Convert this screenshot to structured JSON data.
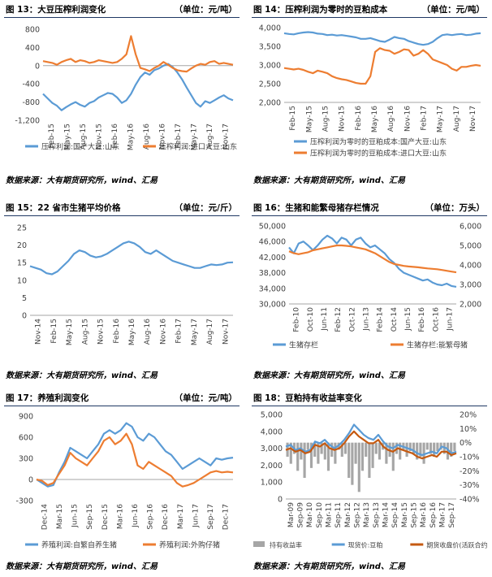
{
  "panels": [
    {
      "title": "图 13：大豆压榨利润变化",
      "unit": "（单位：元/吨）",
      "source": "数据来源：大有期货研究所，wind、汇易",
      "chart_data": {
        "type": "line",
        "x_ticks": [
          "Feb-15",
          "May-15",
          "Aug-15",
          "Nov-15",
          "Feb-16",
          "May-16",
          "Aug-16",
          "Nov-16",
          "Feb-17",
          "May-17",
          "Aug-17",
          "Nov-17"
        ],
        "y_left": {
          "ticks": [
            "800",
            "400",
            "0",
            "-400",
            "-800",
            "-1,200"
          ],
          "min": -1200,
          "max": 800
        },
        "series": [
          {
            "name": "压榨利润:国产大豆:山东",
            "color": "#5b9bd5",
            "axis": "left",
            "values": [
              -620,
              -720,
              -820,
              -880,
              -980,
              -910,
              -850,
              -800,
              -860,
              -900,
              -820,
              -780,
              -700,
              -650,
              -600,
              -620,
              -700,
              -820,
              -760,
              -620,
              -420,
              -250,
              -150,
              -200,
              -100,
              -60,
              0,
              40,
              -30,
              -150,
              -300,
              -480,
              -650,
              -820,
              -900,
              -780,
              -820,
              -760,
              -700,
              -650,
              -720,
              -760
            ]
          },
          {
            "name": "压榨利润:进口大豆:山东",
            "color": "#ed7d31",
            "axis": "left",
            "values": [
              100,
              80,
              60,
              20,
              80,
              120,
              150,
              80,
              120,
              100,
              60,
              80,
              120,
              100,
              80,
              60,
              80,
              150,
              250,
              650,
              250,
              -50,
              -80,
              -120,
              -50,
              0,
              80,
              20,
              -50,
              -100,
              -120,
              -130,
              -60,
              0,
              40,
              20,
              80,
              100,
              40,
              60,
              40,
              20
            ]
          }
        ]
      }
    },
    {
      "title": "图 14：压榨利润为零时的豆粕成本",
      "unit": "（单位：元/吨）",
      "source": "数据来源：大有期货研究所，wind、汇易",
      "chart_data": {
        "type": "line",
        "x_ticks": [
          "Feb-15",
          "May-15",
          "Aug-15",
          "Nov-15",
          "Feb-16",
          "May-16",
          "Aug-16",
          "Nov-16",
          "Feb-17",
          "May-17",
          "Aug-17",
          "Nov-17"
        ],
        "y_left": {
          "ticks": [
            "4,000",
            "3,500",
            "3,000",
            "2,500",
            "2,000"
          ],
          "min": 2000,
          "max": 4000
        },
        "series": [
          {
            "name": "压榨利润为零时的豆粕成本:国产大豆:山东",
            "color": "#5b9bd5",
            "axis": "left",
            "values": [
              3850,
              3830,
              3820,
              3850,
              3870,
              3880,
              3870,
              3840,
              3830,
              3800,
              3810,
              3790,
              3800,
              3780,
              3760,
              3740,
              3700,
              3700,
              3720,
              3680,
              3640,
              3620,
              3680,
              3750,
              3720,
              3700,
              3640,
              3600,
              3560,
              3540,
              3560,
              3620,
              3720,
              3800,
              3820,
              3800,
              3820,
              3830,
              3800,
              3810,
              3840,
              3850
            ]
          },
          {
            "name": "压榨利润为零时的豆粕成本:进口大豆:山东",
            "color": "#ed7d31",
            "axis": "left",
            "values": [
              2920,
              2900,
              2880,
              2900,
              2870,
              2820,
              2780,
              2850,
              2820,
              2780,
              2700,
              2650,
              2620,
              2600,
              2560,
              2520,
              2500,
              2500,
              2700,
              3350,
              3450,
              3400,
              3380,
              3300,
              3350,
              3420,
              3400,
              3250,
              3300,
              3400,
              3300,
              3150,
              3100,
              3050,
              3000,
              2900,
              2850,
              2950,
              2950,
              2980,
              3000,
              2980
            ]
          }
        ]
      }
    },
    {
      "title": "图 15：22 省市生猪平均价格",
      "unit": "（单位：元/斤）",
      "source": "数据来源：大有期货研究所，wind、汇易",
      "chart_data": {
        "type": "line",
        "x_ticks": [
          "Nov-14",
          "Feb-15",
          "May-15",
          "Aug-15",
          "Nov-15",
          "Feb-16",
          "May-16",
          "Aug-16",
          "Nov-16",
          "Feb-17",
          "May-17",
          "Aug-17",
          "Nov-17"
        ],
        "y_left": {
          "ticks": [
            "25",
            "20",
            "15",
            "10",
            "5",
            "0"
          ],
          "min": 0,
          "max": 25
        },
        "series": [
          {
            "name": "",
            "color": "#5b9bd5",
            "axis": "left",
            "values": [
              14,
              13.5,
              13,
              12,
              11.7,
              12.5,
              14,
              15.5,
              17.5,
              18.5,
              18,
              17,
              16.5,
              16.8,
              17.5,
              18.5,
              19.5,
              20.5,
              21,
              20.5,
              19.5,
              18,
              17.5,
              18.5,
              17.5,
              16.5,
              15.5,
              15,
              14.5,
              14,
              13.5,
              13.5,
              14,
              14.5,
              14.3,
              14.5,
              15,
              15.1
            ]
          }
        ]
      }
    },
    {
      "title": "图 16：生猪和能繁母猪存栏情况",
      "unit": "（单位：万头）",
      "source": "数据来源：大有期货研究所，wind、汇易",
      "chart_data": {
        "type": "line",
        "x_ticks": [
          "Feb-10",
          "Oct-10",
          "Jun-11",
          "Feb-12",
          "Oct-12",
          "Jun-13",
          "Feb-14",
          "Oct-14",
          "Jun-15",
          "Feb-16",
          "Oct-16",
          "Jun-17"
        ],
        "y_left": {
          "ticks": [
            "50,000",
            "46,000",
            "42,000",
            "38,000",
            "34,000",
            "30,000"
          ],
          "min": 30000,
          "max": 50000
        },
        "y_right": {
          "ticks": [
            "6,000",
            "5,000",
            "4,000",
            "3,000",
            "2,000"
          ],
          "min": 2000,
          "max": 6000
        },
        "series": [
          {
            "name": "生猪存栏",
            "color": "#5b9bd5",
            "axis": "left",
            "values": [
              44500,
              43000,
              45500,
              46000,
              45000,
              43800,
              45000,
              46500,
              47500,
              46800,
              45500,
              47000,
              46500,
              45000,
              46500,
              47000,
              45500,
              44500,
              45000,
              44000,
              43000,
              41500,
              40500,
              39000,
              38000,
              37500,
              37000,
              36500,
              36000,
              36300,
              35500,
              35000,
              34800,
              35200,
              34600,
              34400
            ]
          },
          {
            "name": "生猪存栏:能繁母猪",
            "color": "#ed7d31",
            "axis": "right",
            "values": [
              4700,
              4600,
              4550,
              4600,
              4650,
              4750,
              4800,
              4850,
              4900,
              4950,
              5000,
              5000,
              4980,
              4950,
              4900,
              4850,
              4800,
              4700,
              4600,
              4450,
              4300,
              4150,
              4050,
              4000,
              3950,
              3920,
              3900,
              3880,
              3850,
              3820,
              3800,
              3780,
              3740,
              3700,
              3660,
              3620
            ]
          }
        ]
      }
    },
    {
      "title": "图 17：养殖利润变化",
      "unit": "（单位：元/吨）",
      "source": "数据来源：大有期货研究所，wind、汇易",
      "chart_data": {
        "type": "line",
        "x_ticks": [
          "Dec-14",
          "Mar-15",
          "Jun-15",
          "Sep-15",
          "Dec-15",
          "Mar-16",
          "Jun-16",
          "Sep-16",
          "Dec-16",
          "Mar-17",
          "Jun-17",
          "Sep-17",
          "Dec-17"
        ],
        "y_left": {
          "ticks": [
            "900",
            "600",
            "300",
            "0",
            "-300"
          ],
          "min": -300,
          "max": 900
        },
        "series": [
          {
            "name": "养殖利润:自繁自养生猪",
            "color": "#5b9bd5",
            "axis": "left",
            "values": [
              0,
              -50,
              -100,
              -80,
              100,
              250,
              450,
              400,
              350,
              300,
              400,
              500,
              650,
              700,
              650,
              700,
              800,
              750,
              600,
              550,
              650,
              600,
              500,
              400,
              350,
              250,
              150,
              200,
              250,
              300,
              250,
              200,
              300,
              280,
              300,
              310
            ]
          },
          {
            "name": "养殖利润:外购仔猪",
            "color": "#ed7d31",
            "axis": "left",
            "values": [
              0,
              -20,
              -80,
              -50,
              80,
              200,
              380,
              300,
              250,
              200,
              300,
              400,
              550,
              600,
              500,
              550,
              650,
              500,
              200,
              150,
              250,
              200,
              150,
              100,
              50,
              -50,
              -100,
              -80,
              -50,
              0,
              50,
              100,
              120,
              100,
              110,
              100
            ]
          }
        ]
      }
    },
    {
      "title": "图 18：豆粕持有收益率变化",
      "unit": "",
      "source": "数据来源：大有期货研究所，wind、汇易",
      "chart_data": {
        "type": "line",
        "x_ticks": [
          "Mar-09",
          "Sep-09",
          "Mar-10",
          "Sep-10",
          "Mar-11",
          "Sep-11",
          "Mar-12",
          "Sep-12",
          "Mar-13",
          "Sep-13",
          "Mar-14",
          "Sep-14",
          "Mar-15",
          "Sep-15",
          "Mar-16",
          "Sep-16",
          "Mar-17",
          "Sep-17"
        ],
        "y_left": {
          "ticks": [
            "5,000",
            "4,000",
            "3,000",
            "2,000",
            "1,000",
            "0"
          ],
          "min": 0,
          "max": 5000
        },
        "y_right": {
          "ticks": [
            "20%",
            "10%",
            "0%",
            "-10%",
            "-20%",
            "-30%",
            "-40%"
          ],
          "min": -40,
          "max": 20
        },
        "series": [
          {
            "name": "持有收益率",
            "color": "#a6a6a6",
            "axis": "right",
            "kind": "bar",
            "values": [
              -10,
              -15,
              -8,
              -20,
              -12,
              -25,
              -5,
              -18,
              -10,
              -15,
              -8,
              -12,
              -20,
              -10,
              -15,
              -5,
              -10,
              -8,
              -25,
              -30,
              -15,
              -35,
              -20,
              -10,
              -25,
              -18,
              -8,
              -12,
              -5,
              -15,
              -10,
              -20,
              -8,
              -12,
              -5,
              -10,
              -6,
              -8,
              -12,
              -10,
              -15,
              -5,
              -8,
              -10,
              -6,
              -5,
              -8,
              -12,
              -10,
              -6
            ]
          },
          {
            "name": "现货价:豆粕",
            "color": "#5b9bd5",
            "axis": "left",
            "values": [
              3100,
              3200,
              2900,
              3000,
              2800,
              2900,
              3400,
              3300,
              3500,
              3200,
              3000,
              3200,
              3500,
              3900,
              4400,
              4100,
              3800,
              3600,
              3500,
              3800,
              3400,
              3100,
              3000,
              3200,
              3100,
              3000,
              2900,
              2700,
              2600,
              2700,
              2800,
              2700,
              3100,
              3000,
              2700,
              2800
            ]
          },
          {
            "name": "期货收盘价(活跃合约):豆粕",
            "color": "#c55a11",
            "axis": "left",
            "values": [
              2900,
              3000,
              2800,
              2900,
              2700,
              2800,
              3200,
              3100,
              3300,
              3000,
              2900,
              3000,
              3300,
              3700,
              4000,
              3700,
              3500,
              3300,
              3300,
              3500,
              3100,
              2900,
              2800,
              3000,
              2900,
              2800,
              2700,
              2500,
              2400,
              2500,
              2600,
              2500,
              2800,
              2800,
              2600,
              2700
            ]
          }
        ]
      }
    }
  ]
}
